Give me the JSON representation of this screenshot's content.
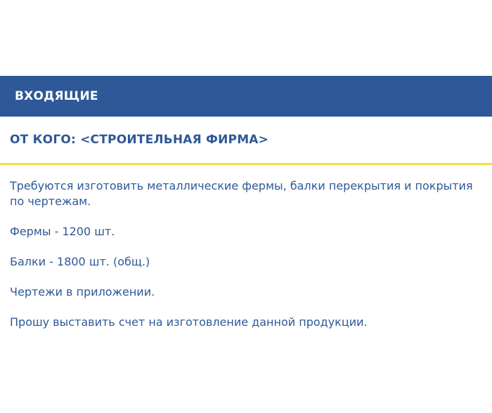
{
  "header": {
    "title": "ВХОДЯЩИЕ"
  },
  "sender": {
    "label": "ОТ КОГО: <СТРОИТЕЛЬНАЯ ФИРМА>"
  },
  "message": {
    "lines": [
      "Требуются изготовить металлические фермы, балки перекрытия и покрытия по чертежам.",
      "Фермы - 1200 шт.",
      "Балки - 1800 шт. (общ.)",
      "Чертежи в приложении.",
      "Прошу выставить счет на изготовление данной продукции."
    ]
  },
  "colors": {
    "header_bg": "#2e5897",
    "accent_text": "#2e5897",
    "divider": "#f2e13c",
    "background": "#ffffff"
  }
}
